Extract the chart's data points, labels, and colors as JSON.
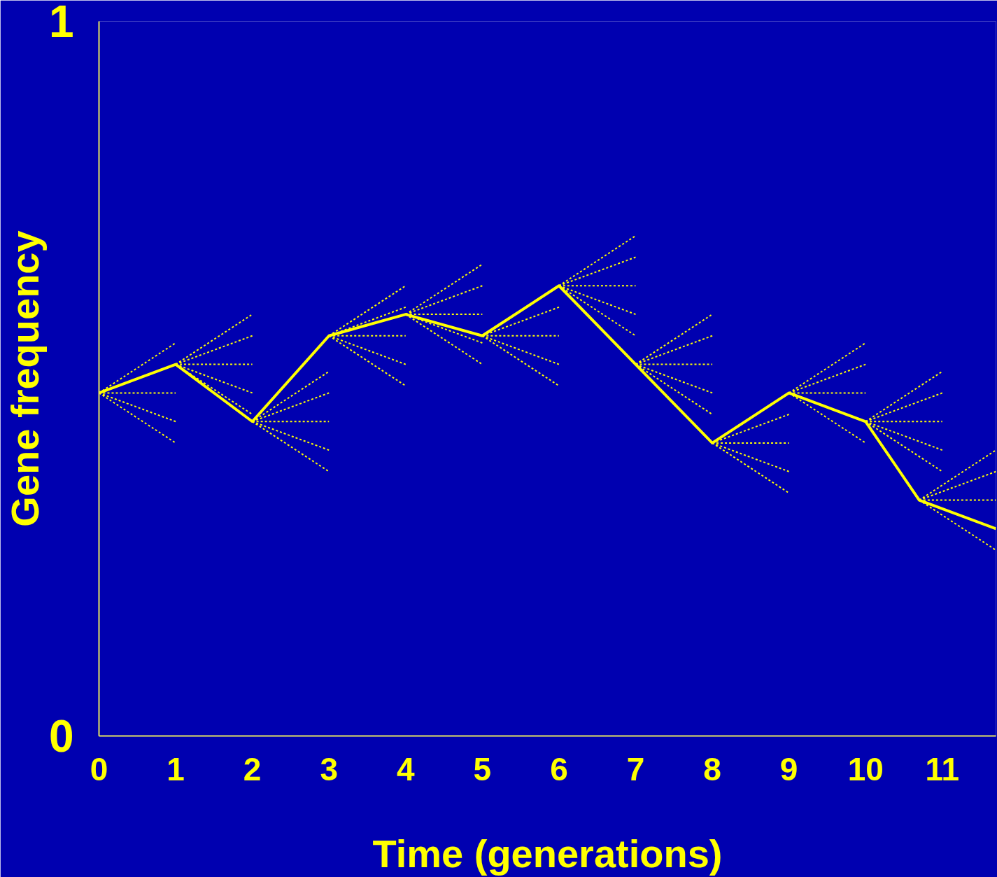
{
  "chart_data": {
    "type": "line",
    "xlabel": "Time (generations)",
    "ylabel": "Gene frequency",
    "xlim": [
      0,
      11.7
    ],
    "xticks": [
      0,
      1,
      2,
      3,
      4,
      5,
      6,
      7,
      8,
      9,
      10,
      11
    ],
    "ylim": [
      0,
      1
    ],
    "yticks": [
      0,
      1
    ],
    "grid": false,
    "series": [
      {
        "color": "#ffff00",
        "line_style": "solid",
        "x": [
          0,
          1,
          2,
          3,
          4,
          5,
          6,
          7,
          8,
          9,
          10,
          10.7,
          11.7
        ],
        "values": [
          0.48,
          0.52,
          0.44,
          0.56,
          0.59,
          0.56,
          0.63,
          0.52,
          0.41,
          0.48,
          0.44,
          0.33,
          0.29
        ]
      },
      {
        "color": "#ffff00",
        "line_style": "dotted",
        "x": [
          0,
          1
        ],
        "values": [
          0.48,
          0.55
        ]
      },
      {
        "color": "#ffff00",
        "line_style": "dotted",
        "x": [
          0,
          1
        ],
        "values": [
          0.48,
          0.48
        ]
      },
      {
        "color": "#ffff00",
        "line_style": "dotted",
        "x": [
          0,
          1
        ],
        "values": [
          0.48,
          0.44
        ]
      },
      {
        "color": "#ffff00",
        "line_style": "dotted",
        "x": [
          0,
          1
        ],
        "values": [
          0.48,
          0.41
        ]
      },
      {
        "color": "#ffff00",
        "line_style": "dotted",
        "x": [
          1,
          2
        ],
        "values": [
          0.52,
          0.59
        ]
      },
      {
        "color": "#ffff00",
        "line_style": "dotted",
        "x": [
          1,
          2
        ],
        "values": [
          0.52,
          0.56
        ]
      },
      {
        "color": "#ffff00",
        "line_style": "dotted",
        "x": [
          1,
          2
        ],
        "values": [
          0.52,
          0.52
        ]
      },
      {
        "color": "#ffff00",
        "line_style": "dotted",
        "x": [
          1,
          2
        ],
        "values": [
          0.52,
          0.48
        ]
      },
      {
        "color": "#ffff00",
        "line_style": "dotted",
        "x": [
          1,
          2
        ],
        "values": [
          0.52,
          0.45
        ]
      },
      {
        "color": "#ffff00",
        "line_style": "dotted",
        "x": [
          2,
          3
        ],
        "values": [
          0.44,
          0.51
        ]
      },
      {
        "color": "#ffff00",
        "line_style": "dotted",
        "x": [
          2,
          3
        ],
        "values": [
          0.44,
          0.48
        ]
      },
      {
        "color": "#ffff00",
        "line_style": "dotted",
        "x": [
          2,
          3
        ],
        "values": [
          0.44,
          0.44
        ]
      },
      {
        "color": "#ffff00",
        "line_style": "dotted",
        "x": [
          2,
          3
        ],
        "values": [
          0.44,
          0.4
        ]
      },
      {
        "color": "#ffff00",
        "line_style": "dotted",
        "x": [
          2,
          3
        ],
        "values": [
          0.44,
          0.37
        ]
      },
      {
        "color": "#ffff00",
        "line_style": "dotted",
        "x": [
          3,
          4
        ],
        "values": [
          0.56,
          0.63
        ]
      },
      {
        "color": "#ffff00",
        "line_style": "dotted",
        "x": [
          3,
          4
        ],
        "values": [
          0.56,
          0.6
        ]
      },
      {
        "color": "#ffff00",
        "line_style": "dotted",
        "x": [
          3,
          4
        ],
        "values": [
          0.56,
          0.56
        ]
      },
      {
        "color": "#ffff00",
        "line_style": "dotted",
        "x": [
          3,
          4
        ],
        "values": [
          0.56,
          0.52
        ]
      },
      {
        "color": "#ffff00",
        "line_style": "dotted",
        "x": [
          3,
          4
        ],
        "values": [
          0.56,
          0.49
        ]
      },
      {
        "color": "#ffff00",
        "line_style": "dotted",
        "x": [
          4,
          5
        ],
        "values": [
          0.59,
          0.66
        ]
      },
      {
        "color": "#ffff00",
        "line_style": "dotted",
        "x": [
          4,
          5
        ],
        "values": [
          0.59,
          0.63
        ]
      },
      {
        "color": "#ffff00",
        "line_style": "dotted",
        "x": [
          4,
          5
        ],
        "values": [
          0.59,
          0.59
        ]
      },
      {
        "color": "#ffff00",
        "line_style": "dotted",
        "x": [
          4,
          5
        ],
        "values": [
          0.59,
          0.55
        ]
      },
      {
        "color": "#ffff00",
        "line_style": "dotted",
        "x": [
          4,
          5
        ],
        "values": [
          0.59,
          0.52
        ]
      },
      {
        "color": "#ffff00",
        "line_style": "dotted",
        "x": [
          5,
          6
        ],
        "values": [
          0.56,
          0.6
        ]
      },
      {
        "color": "#ffff00",
        "line_style": "dotted",
        "x": [
          5,
          6
        ],
        "values": [
          0.56,
          0.56
        ]
      },
      {
        "color": "#ffff00",
        "line_style": "dotted",
        "x": [
          5,
          6
        ],
        "values": [
          0.56,
          0.52
        ]
      },
      {
        "color": "#ffff00",
        "line_style": "dotted",
        "x": [
          5,
          6
        ],
        "values": [
          0.56,
          0.49
        ]
      },
      {
        "color": "#ffff00",
        "line_style": "dotted",
        "x": [
          6,
          7
        ],
        "values": [
          0.63,
          0.7
        ]
      },
      {
        "color": "#ffff00",
        "line_style": "dotted",
        "x": [
          6,
          7
        ],
        "values": [
          0.63,
          0.67
        ]
      },
      {
        "color": "#ffff00",
        "line_style": "dotted",
        "x": [
          6,
          7
        ],
        "values": [
          0.63,
          0.63
        ]
      },
      {
        "color": "#ffff00",
        "line_style": "dotted",
        "x": [
          6,
          7
        ],
        "values": [
          0.63,
          0.59
        ]
      },
      {
        "color": "#ffff00",
        "line_style": "dotted",
        "x": [
          6,
          7
        ],
        "values": [
          0.63,
          0.56
        ]
      },
      {
        "color": "#ffff00",
        "line_style": "dotted",
        "x": [
          7,
          8
        ],
        "values": [
          0.52,
          0.59
        ]
      },
      {
        "color": "#ffff00",
        "line_style": "dotted",
        "x": [
          7,
          8
        ],
        "values": [
          0.52,
          0.56
        ]
      },
      {
        "color": "#ffff00",
        "line_style": "dotted",
        "x": [
          7,
          8
        ],
        "values": [
          0.52,
          0.52
        ]
      },
      {
        "color": "#ffff00",
        "line_style": "dotted",
        "x": [
          7,
          8
        ],
        "values": [
          0.52,
          0.48
        ]
      },
      {
        "color": "#ffff00",
        "line_style": "dotted",
        "x": [
          7,
          8
        ],
        "values": [
          0.52,
          0.45
        ]
      },
      {
        "color": "#ffff00",
        "line_style": "dotted",
        "x": [
          8,
          9
        ],
        "values": [
          0.41,
          0.45
        ]
      },
      {
        "color": "#ffff00",
        "line_style": "dotted",
        "x": [
          8,
          9
        ],
        "values": [
          0.41,
          0.41
        ]
      },
      {
        "color": "#ffff00",
        "line_style": "dotted",
        "x": [
          8,
          9
        ],
        "values": [
          0.41,
          0.37
        ]
      },
      {
        "color": "#ffff00",
        "line_style": "dotted",
        "x": [
          8,
          9
        ],
        "values": [
          0.41,
          0.34
        ]
      },
      {
        "color": "#ffff00",
        "line_style": "dotted",
        "x": [
          9,
          10
        ],
        "values": [
          0.48,
          0.55
        ]
      },
      {
        "color": "#ffff00",
        "line_style": "dotted",
        "x": [
          9,
          10
        ],
        "values": [
          0.48,
          0.52
        ]
      },
      {
        "color": "#ffff00",
        "line_style": "dotted",
        "x": [
          9,
          10
        ],
        "values": [
          0.48,
          0.48
        ]
      },
      {
        "color": "#ffff00",
        "line_style": "dotted",
        "x": [
          9,
          10
        ],
        "values": [
          0.48,
          0.41
        ]
      },
      {
        "color": "#ffff00",
        "line_style": "dotted",
        "x": [
          10,
          11
        ],
        "values": [
          0.44,
          0.51
        ]
      },
      {
        "color": "#ffff00",
        "line_style": "dotted",
        "x": [
          10,
          11
        ],
        "values": [
          0.44,
          0.48
        ]
      },
      {
        "color": "#ffff00",
        "line_style": "dotted",
        "x": [
          10,
          11
        ],
        "values": [
          0.44,
          0.44
        ]
      },
      {
        "color": "#ffff00",
        "line_style": "dotted",
        "x": [
          10,
          11
        ],
        "values": [
          0.44,
          0.4
        ]
      },
      {
        "color": "#ffff00",
        "line_style": "dotted",
        "x": [
          10,
          11
        ],
        "values": [
          0.44,
          0.37
        ]
      },
      {
        "color": "#ffff00",
        "line_style": "dotted",
        "x": [
          10.7,
          11.7
        ],
        "values": [
          0.33,
          0.4
        ]
      },
      {
        "color": "#ffff00",
        "line_style": "dotted",
        "x": [
          10.7,
          11.7
        ],
        "values": [
          0.33,
          0.37
        ]
      },
      {
        "color": "#ffff00",
        "line_style": "dotted",
        "x": [
          10.7,
          11.7
        ],
        "values": [
          0.33,
          0.33
        ]
      },
      {
        "color": "#ffff00",
        "line_style": "dotted",
        "x": [
          10.7,
          11.7
        ],
        "values": [
          0.33,
          0.26
        ]
      }
    ]
  }
}
